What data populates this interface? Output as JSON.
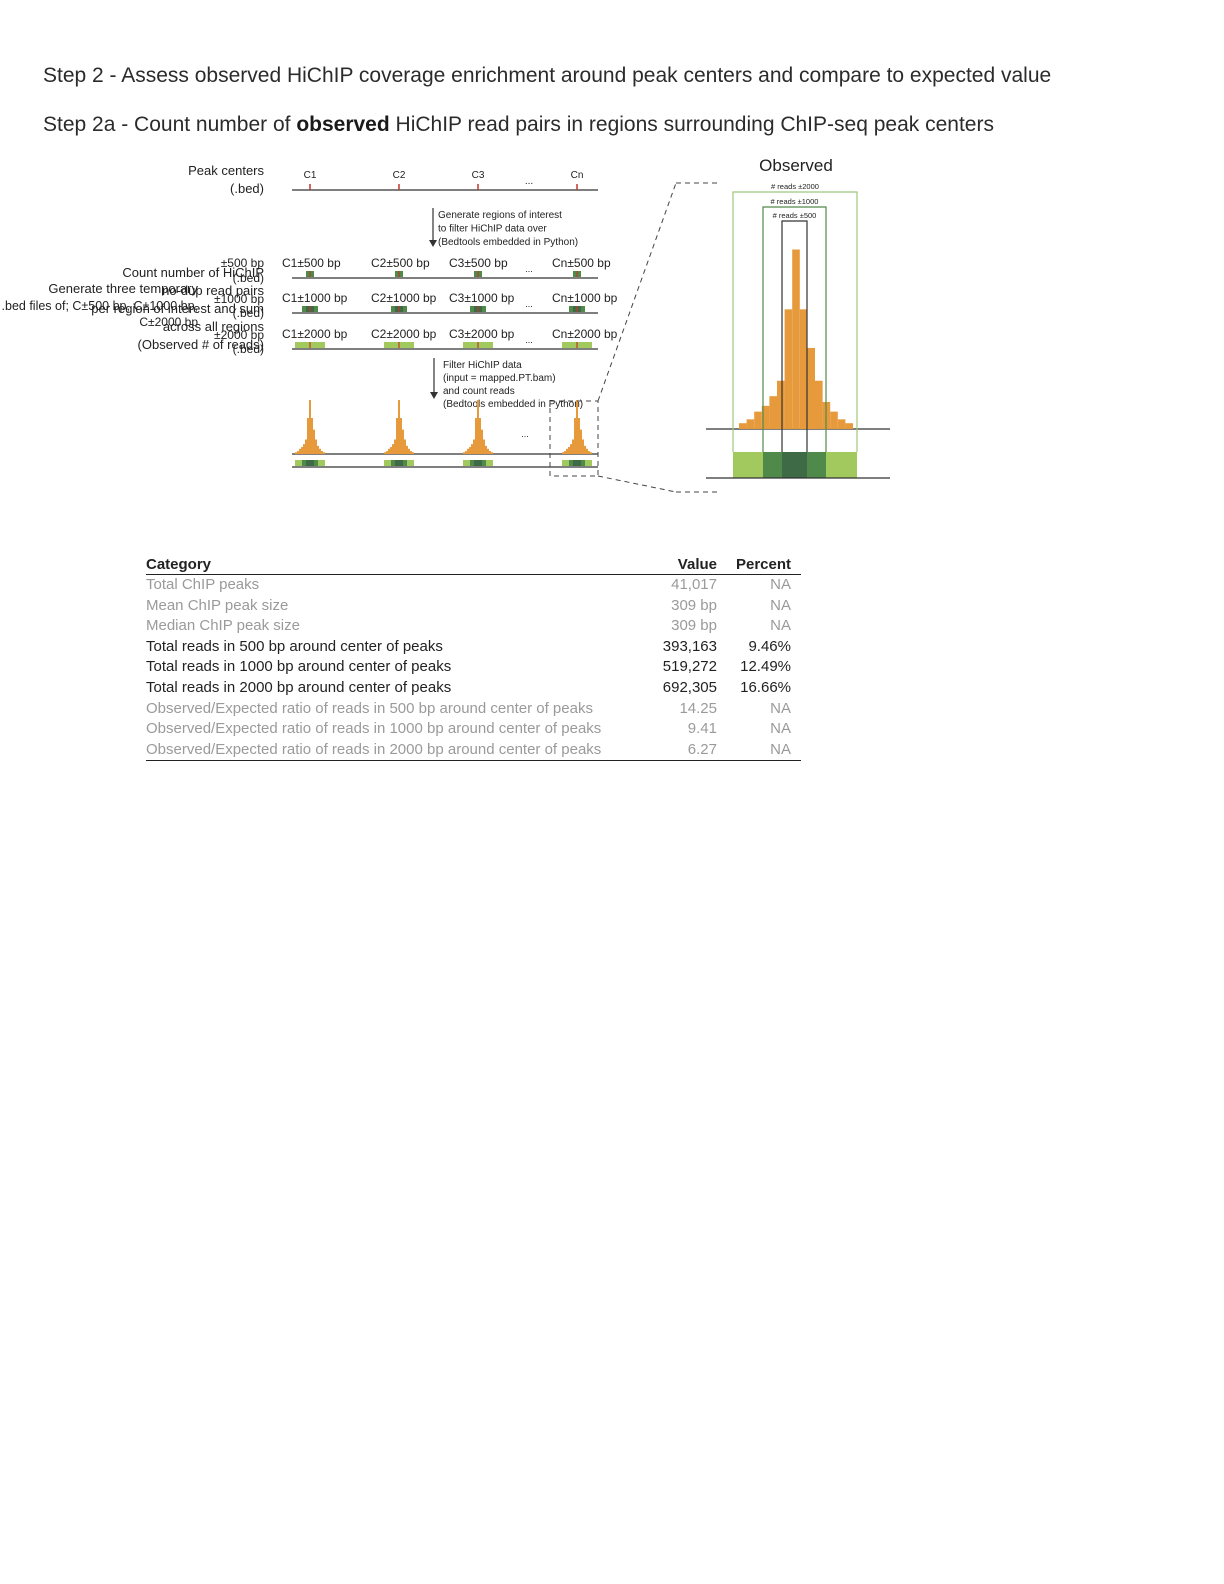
{
  "title_main": "Step 2 - Assess observed HiChIP coverage enrichment around peak centers and compare to expected value",
  "subtitle": {
    "prefix": "Step 2a - Count number of ",
    "bold": "observed",
    "suffix": " HiChIP read pairs in regions surrounding ChIP-seq peak centers"
  },
  "diagram": {
    "peak_centers_label": [
      "Peak centers",
      "(.bed)"
    ],
    "centers": [
      "C1",
      "C2",
      "C3",
      "...",
      "Cn"
    ],
    "step_generate": [
      "Generate regions of interest",
      "to filter HiChIP data over",
      "(Bedtools embedded in Python)"
    ],
    "temp_label": [
      "Generate three temporary",
      ".bed files of; C±500 bp, C±1000 bp,",
      "C±2000 bp"
    ],
    "rows": [
      {
        "side": [
          "±500 bp",
          "(.bed)"
        ],
        "items": [
          "C1±500 bp",
          "C2±500 bp",
          "C3±500 bp",
          "Cn±500 bp"
        ]
      },
      {
        "side": [
          "±1000 bp",
          "(.bed)"
        ],
        "items": [
          "C1±1000 bp",
          "C2±1000 bp",
          "C3±1000 bp",
          "Cn±1000 bp"
        ]
      },
      {
        "side": [
          "±2000 bp",
          "(.bed)"
        ],
        "items": [
          "C1±2000 bp",
          "C2±2000 bp",
          "C3±2000 bp",
          "Cn±2000 bp"
        ]
      }
    ],
    "ellipsis": "...",
    "step_filter": [
      "Filter HiChIP data",
      "(input = mapped.PT.bam)",
      "and count reads",
      "(Bedtools embedded in Python)"
    ],
    "count_label": [
      "Count number of HiChIP",
      "no-dup read pairs",
      "per region of interest and sum",
      "across all regions",
      "(Observed # of reads)"
    ],
    "observed_title": "Observed",
    "observed_brackets": [
      "# reads ±2000",
      "# reads ±1000",
      "# reads ±500"
    ],
    "histogram_values": [
      0.03,
      0.05,
      0.09,
      0.12,
      0.17,
      0.25,
      0.62,
      0.93,
      0.62,
      0.42,
      0.25,
      0.14,
      0.09,
      0.05,
      0.03
    ],
    "colors": {
      "orange": "#e69a3c",
      "light_green": "#a2c95d",
      "mid_green": "#4f8a4a",
      "dark_green": "#3e6a45",
      "red_tick": "#c0392b",
      "bracket": "#9cc77d"
    }
  },
  "table": {
    "headers": {
      "category": "Category",
      "value": "Value",
      "percent": "Percent"
    },
    "rows": [
      {
        "category": "Total ChIP peaks",
        "value": "41,017",
        "percent": "NA",
        "grey": true
      },
      {
        "category": "Mean ChIP peak size",
        "value": "309 bp",
        "percent": "NA",
        "grey": true
      },
      {
        "category": "Median ChIP peak size",
        "value": "309 bp",
        "percent": "NA",
        "grey": true
      },
      {
        "category": "Total reads in 500 bp around center of peaks",
        "value": "393,163",
        "percent": "9.46%",
        "grey": false
      },
      {
        "category": "Total reads in 1000 bp around center of peaks",
        "value": "519,272",
        "percent": "12.49%",
        "grey": false
      },
      {
        "category": "Total reads in 2000 bp around center of peaks",
        "value": "692,305",
        "percent": "16.66%",
        "grey": false
      },
      {
        "category": "Observed/Expected ratio of reads in 500 bp around center of peaks",
        "value": "14.25",
        "percent": "NA",
        "grey": true
      },
      {
        "category": "Observed/Expected ratio of reads in 1000 bp around center of peaks",
        "value": "9.41",
        "percent": "NA",
        "grey": true
      },
      {
        "category": "Observed/Expected ratio of reads in 2000 bp around center of peaks",
        "value": "6.27",
        "percent": "NA",
        "grey": true
      }
    ]
  }
}
